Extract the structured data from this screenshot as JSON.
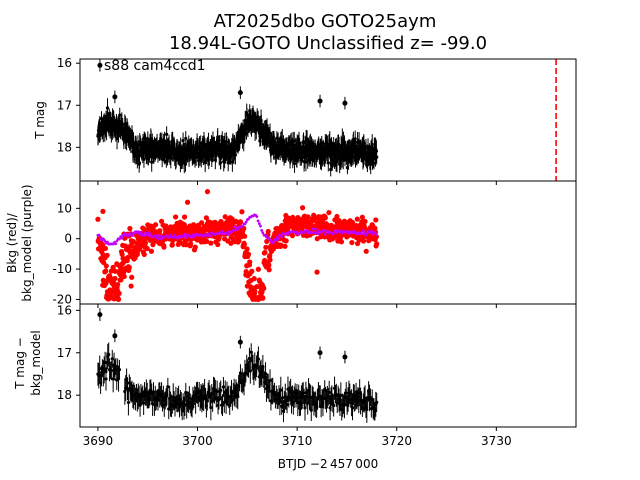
{
  "figure": {
    "title_line1": "AT2025dbo  GOTO25aym",
    "title_line2": "18.94L-GOTO Unclassified z= -99.0",
    "annotation": "s88 cam4ccd1",
    "xlabel": "BTJD −2 457 000"
  },
  "colors": {
    "mag": "#000000",
    "bkg": "#ff0000",
    "bkg_model": "#bf00ff",
    "marker_line": "#ff0000"
  },
  "chart_data": [
    {
      "type": "scatter",
      "panel": "top",
      "ylabel": "T mag",
      "xlim": [
        3688.2,
        3738.0
      ],
      "ylim": [
        18.8,
        15.9
      ],
      "y_inverted": true,
      "xticks": [
        3690,
        3700,
        3710,
        3720,
        3730
      ],
      "yticks": [
        16,
        17,
        18
      ],
      "vline_x": 3736,
      "series_trend": {
        "x": [
          3690,
          3691,
          3692,
          3693,
          3694,
          3696,
          3698,
          3700,
          3702,
          3703.5,
          3704.5,
          3705.3,
          3706.3,
          3707.5,
          3709,
          3711,
          3713,
          3716,
          3718
        ],
        "y": [
          17.6,
          17.4,
          17.5,
          17.7,
          18.1,
          18.0,
          18.15,
          18.1,
          18.05,
          18.1,
          17.6,
          17.3,
          17.5,
          17.95,
          18.1,
          18.05,
          18.15,
          18.1,
          18.2
        ]
      },
      "outliers": [
        [
          3690.2,
          16.05
        ],
        [
          3691.7,
          16.8
        ],
        [
          3704.3,
          16.7
        ],
        [
          3712.3,
          16.9
        ],
        [
          3714.8,
          16.95
        ]
      ]
    },
    {
      "type": "scatter",
      "panel": "middle",
      "ylabel_line1": "Bkg (red)/",
      "ylabel_line2": "bkg_model (purple)",
      "xlim": [
        3688.2,
        3738.0
      ],
      "ylim": [
        -21.5,
        19.0
      ],
      "yticks": [
        -20,
        -10,
        0,
        10
      ],
      "series_bkg": {
        "x": [
          3690,
          3690.5,
          3691,
          3691.5,
          3692,
          3692.5,
          3693,
          3693.5,
          3694,
          3695,
          3697,
          3700,
          3703,
          3704.5,
          3705,
          3705.5,
          3706,
          3706.5,
          3707,
          3708,
          3709,
          3711,
          3714,
          3718
        ],
        "y": [
          2,
          -8,
          -14,
          -18,
          -16,
          -6,
          -3,
          -5,
          -2,
          1,
          1.5,
          2,
          3,
          4,
          -10,
          -18,
          -19,
          -15,
          -6,
          1,
          4,
          4,
          3,
          2
        ]
      },
      "series_model": {
        "x": [
          3690,
          3690.8,
          3691.5,
          3692.2,
          3693,
          3694,
          3696,
          3700,
          3703,
          3704.5,
          3705.3,
          3705.9,
          3706.5,
          3707.5,
          3709,
          3712,
          3715,
          3718
        ],
        "y": [
          1,
          -1,
          -2,
          0.5,
          1.5,
          2,
          0.5,
          1,
          2,
          4,
          7,
          8,
          2,
          -1,
          2,
          2.5,
          2,
          1.8
        ]
      },
      "outliers": [
        [
          3701,
          15.5
        ],
        [
          3690.5,
          9
        ],
        [
          3712,
          -11
        ],
        [
          3699,
          12
        ]
      ]
    },
    {
      "type": "scatter",
      "panel": "bottom",
      "ylabel_line1": "T mag −",
      "ylabel_line2": "bkg_model",
      "xlim": [
        3688.2,
        3738.0
      ],
      "ylim": [
        18.75,
        15.85
      ],
      "y_inverted": true,
      "yticks": [
        16,
        17,
        18
      ],
      "series_trend": {
        "x": [
          3690,
          3691,
          3692,
          3693,
          3694,
          3696,
          3698,
          3700,
          3702,
          3703.5,
          3704.5,
          3705.3,
          3706.3,
          3707.5,
          3709,
          3711,
          3713,
          3716,
          3718
        ],
        "y": [
          17.6,
          17.3,
          17.5,
          17.8,
          18.1,
          18.0,
          18.15,
          18.1,
          18.05,
          18.1,
          17.6,
          17.3,
          17.4,
          17.95,
          18.1,
          18.05,
          18.15,
          18.1,
          18.2
        ]
      },
      "outliers": [
        [
          3690.2,
          16.1
        ],
        [
          3691.7,
          16.6
        ],
        [
          3704.3,
          16.75
        ],
        [
          3712.3,
          17.0
        ],
        [
          3714.8,
          17.1
        ]
      ]
    }
  ]
}
